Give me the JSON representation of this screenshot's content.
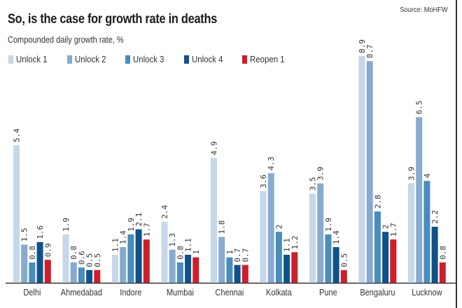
{
  "header": {
    "title": "So, is the case for growth rate in deaths",
    "subtitle": "Compounded daily growth rate, %",
    "source": "Source: MoHFW"
  },
  "chart_data": {
    "type": "bar",
    "title": "So, is the case for growth rate in deaths",
    "subtitle": "Compounded daily growth rate, %",
    "xlabel": "",
    "ylabel": "Compounded daily growth rate, %",
    "ylim": [
      0,
      8.9
    ],
    "grid": false,
    "legend_position": "top-left",
    "categories": [
      "Delhi",
      "Ahmedabad",
      "Indore",
      "Mumbai",
      "Chennai",
      "Kolkata",
      "Pune",
      "Bengaluru",
      "Lucknow"
    ],
    "series": [
      {
        "name": "Unlock 1",
        "color": "#c5d7e8",
        "values": [
          5.4,
          1.9,
          1.1,
          2.4,
          4.9,
          3.6,
          3.5,
          8.9,
          3.9
        ]
      },
      {
        "name": "Unlock 2",
        "color": "#86abcf",
        "values": [
          1.5,
          0.8,
          1.4,
          1.3,
          1.8,
          4.3,
          3.9,
          8.7,
          6.5
        ]
      },
      {
        "name": "Unlock 3",
        "color": "#4a8cbb",
        "values": [
          0.8,
          0.6,
          1.9,
          0.8,
          1,
          2,
          1.9,
          2.8,
          4
        ]
      },
      {
        "name": "Unlock 4",
        "color": "#0f5289",
        "values": [
          1.6,
          0.5,
          2.1,
          1.1,
          0.7,
          1.1,
          1.4,
          2,
          2.2
        ]
      },
      {
        "name": "Reopen 1",
        "color": "#cc1f2c",
        "values": [
          0.9,
          0.5,
          1.7,
          1,
          0.7,
          1.2,
          0.5,
          1.7,
          0.8
        ]
      }
    ]
  }
}
